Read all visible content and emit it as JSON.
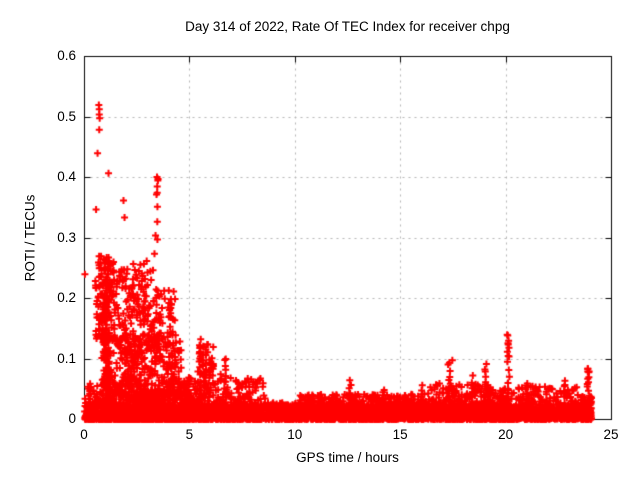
{
  "chart_data": {
    "type": "scatter",
    "title": "Day 314 of 2022, Rate Of TEC Index for receiver chpg",
    "xlabel": "GPS time / hours",
    "ylabel": "ROTI / TECUs",
    "xlim": [
      0,
      25
    ],
    "ylim": [
      0,
      0.6
    ],
    "xticks": [
      0,
      5,
      10,
      15,
      20,
      25
    ],
    "xtick_labels": [
      "0",
      "5",
      "10",
      "15",
      "20",
      "25"
    ],
    "yticks": [
      0,
      0.1,
      0.2,
      0.3,
      0.4,
      0.5,
      0.6
    ],
    "ytick_labels": [
      "0",
      "0.1",
      "0.2",
      "0.3",
      "0.4",
      "0.5",
      "0.6"
    ],
    "grid": {
      "show": true,
      "color": "#b5b5b5",
      "style": "dotted"
    },
    "axis_color": "#000000",
    "marker": {
      "shape": "plus",
      "color": "#ff0000",
      "size": 7,
      "stroke": 2
    },
    "legend": "none",
    "data_end_hour": 24.05,
    "outlier_points": [
      [
        0.02,
        0.24
      ],
      [
        0.55,
        0.347
      ],
      [
        0.62,
        0.44
      ],
      [
        0.68,
        0.52
      ],
      [
        0.7,
        0.513
      ],
      [
        0.7,
        0.504
      ],
      [
        0.72,
        0.498
      ],
      [
        0.7,
        0.479
      ],
      [
        1.14,
        0.407
      ],
      [
        1.85,
        0.362
      ],
      [
        1.9,
        0.334
      ],
      [
        3.37,
        0.304
      ],
      [
        3.32,
        0.274
      ],
      [
        3.45,
        0.375
      ],
      [
        3.45,
        0.385
      ],
      [
        3.48,
        0.395
      ],
      [
        3.44,
        0.401
      ],
      [
        2.95,
        0.262
      ],
      [
        1.05,
        0.262
      ],
      [
        0.95,
        0.258
      ],
      [
        20.08,
        0.139
      ],
      [
        20.12,
        0.13
      ],
      [
        20.1,
        0.124
      ],
      [
        20.06,
        0.112
      ],
      [
        20.14,
        0.104
      ],
      [
        23.88,
        0.084
      ],
      [
        23.92,
        0.078
      ],
      [
        6.7,
        0.1
      ],
      [
        17.45,
        0.098
      ]
    ],
    "spike_columns": [
      {
        "x": 0.7,
        "n": 8,
        "y0": 0.15,
        "y1": 0.27,
        "jx": 0.05
      },
      {
        "x": 1.0,
        "n": 12,
        "y0": 0.1,
        "y1": 0.26,
        "jx": 0.07
      },
      {
        "x": 3.45,
        "n": 5,
        "y0": 0.3,
        "y1": 0.4,
        "jx": 0.04
      },
      {
        "x": 5.5,
        "n": 9,
        "y0": 0.04,
        "y1": 0.13,
        "jx": 0.06
      },
      {
        "x": 5.75,
        "n": 8,
        "y0": 0.04,
        "y1": 0.115,
        "jx": 0.06
      },
      {
        "x": 5.95,
        "n": 7,
        "y0": 0.04,
        "y1": 0.1,
        "jx": 0.06
      },
      {
        "x": 6.7,
        "n": 8,
        "y0": 0.03,
        "y1": 0.1,
        "jx": 0.05
      },
      {
        "x": 7.8,
        "n": 7,
        "y0": 0.02,
        "y1": 0.068,
        "jx": 0.07
      },
      {
        "x": 12.6,
        "n": 6,
        "y0": 0.03,
        "y1": 0.066,
        "jx": 0.05
      },
      {
        "x": 14.2,
        "n": 5,
        "y0": 0.02,
        "y1": 0.05,
        "jx": 0.06
      },
      {
        "x": 16.0,
        "n": 5,
        "y0": 0.02,
        "y1": 0.055,
        "jx": 0.05
      },
      {
        "x": 17.3,
        "n": 8,
        "y0": 0.04,
        "y1": 0.096,
        "jx": 0.06
      },
      {
        "x": 18.4,
        "n": 6,
        "y0": 0.03,
        "y1": 0.07,
        "jx": 0.05
      },
      {
        "x": 19.05,
        "n": 8,
        "y0": 0.04,
        "y1": 0.092,
        "jx": 0.06
      },
      {
        "x": 20.1,
        "n": 9,
        "y0": 0.05,
        "y1": 0.14,
        "jx": 0.06
      },
      {
        "x": 21.0,
        "n": 6,
        "y0": 0.02,
        "y1": 0.062,
        "jx": 0.05
      },
      {
        "x": 22.8,
        "n": 6,
        "y0": 0.02,
        "y1": 0.065,
        "jx": 0.05
      },
      {
        "x": 23.9,
        "n": 9,
        "y0": 0.048,
        "y1": 0.086,
        "jx": 0.05
      }
    ],
    "density_bands": [
      {
        "x0": 0.0,
        "x1": 24.05,
        "n": 2200,
        "y0": 0,
        "y1": 0.025,
        "bias": 1.2
      },
      {
        "x0": 0.0,
        "x1": 5.0,
        "n": 650,
        "y0": 0,
        "y1": 0.06,
        "bias": 2.4
      },
      {
        "x0": 0.8,
        "x1": 4.6,
        "n": 820,
        "y0": 0,
        "y1": 0.14,
        "bias": 2.2
      },
      {
        "x0": 0.5,
        "x1": 1.45,
        "n": 115,
        "y0": 0.13,
        "y1": 0.27,
        "bias": 1.0
      },
      {
        "x0": 0.85,
        "x1": 1.2,
        "n": 70,
        "y0": 0.05,
        "y1": 0.23,
        "bias": 1.2
      },
      {
        "x0": 1.5,
        "x1": 2.2,
        "n": 60,
        "y0": 0.12,
        "y1": 0.25,
        "bias": 1.3
      },
      {
        "x0": 2.2,
        "x1": 3.35,
        "n": 95,
        "y0": 0.12,
        "y1": 0.26,
        "bias": 1.3
      },
      {
        "x0": 3.35,
        "x1": 4.3,
        "n": 55,
        "y0": 0.12,
        "y1": 0.215,
        "bias": 1.4
      },
      {
        "x0": 4.6,
        "x1": 5.35,
        "n": 110,
        "y0": 0,
        "y1": 0.07,
        "bias": 2.0
      },
      {
        "x0": 5.35,
        "x1": 6.15,
        "n": 140,
        "y0": 0,
        "y1": 0.125,
        "bias": 2.2
      },
      {
        "x0": 6.15,
        "x1": 8.6,
        "n": 260,
        "y0": 0,
        "y1": 0.075,
        "bias": 2.6
      },
      {
        "x0": 8.6,
        "x1": 10.2,
        "n": 150,
        "y0": 0,
        "y1": 0.028,
        "bias": 1.5
      },
      {
        "x0": 10.2,
        "x1": 16.3,
        "n": 680,
        "y0": 0,
        "y1": 0.042,
        "bias": 1.8
      },
      {
        "x0": 16.3,
        "x1": 19.6,
        "n": 400,
        "y0": 0,
        "y1": 0.06,
        "bias": 2.0
      },
      {
        "x0": 19.6,
        "x1": 23.4,
        "n": 400,
        "y0": 0,
        "y1": 0.055,
        "bias": 2.0
      },
      {
        "x0": 23.55,
        "x1": 24.05,
        "n": 110,
        "y0": 0,
        "y1": 0.04,
        "bias": 1.5
      }
    ]
  }
}
